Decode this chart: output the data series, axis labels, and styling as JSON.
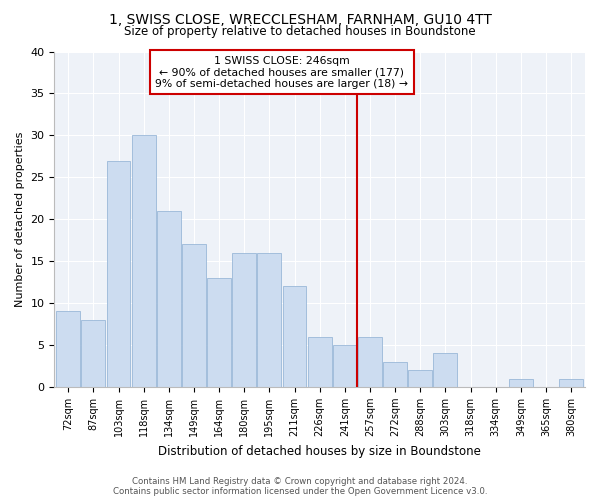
{
  "title": "1, SWISS CLOSE, WRECCLESHAM, FARNHAM, GU10 4TT",
  "subtitle": "Size of property relative to detached houses in Boundstone",
  "xlabel": "Distribution of detached houses by size in Boundstone",
  "ylabel": "Number of detached properties",
  "categories": [
    "72sqm",
    "87sqm",
    "103sqm",
    "118sqm",
    "134sqm",
    "149sqm",
    "164sqm",
    "180sqm",
    "195sqm",
    "211sqm",
    "226sqm",
    "241sqm",
    "257sqm",
    "272sqm",
    "288sqm",
    "303sqm",
    "318sqm",
    "334sqm",
    "349sqm",
    "365sqm",
    "380sqm"
  ],
  "values": [
    9,
    8,
    27,
    30,
    21,
    17,
    13,
    16,
    16,
    12,
    6,
    5,
    6,
    3,
    2,
    4,
    0,
    0,
    1,
    0,
    1
  ],
  "bar_color": "#ccdcf0",
  "bar_edge_color": "#9ab8d8",
  "vline_color": "#cc0000",
  "annotation_line1": "1 SWISS CLOSE: 246sqm",
  "annotation_line2": "← 90% of detached houses are smaller (177)",
  "annotation_line3": "9% of semi-detached houses are larger (18) →",
  "annotation_box_color": "#cc0000",
  "ylim": [
    0,
    40
  ],
  "yticks": [
    0,
    5,
    10,
    15,
    20,
    25,
    30,
    35,
    40
  ],
  "bg_color": "#eef2f8",
  "grid_color": "#ffffff",
  "footer_line1": "Contains HM Land Registry data © Crown copyright and database right 2024.",
  "footer_line2": "Contains public sector information licensed under the Open Government Licence v3.0."
}
